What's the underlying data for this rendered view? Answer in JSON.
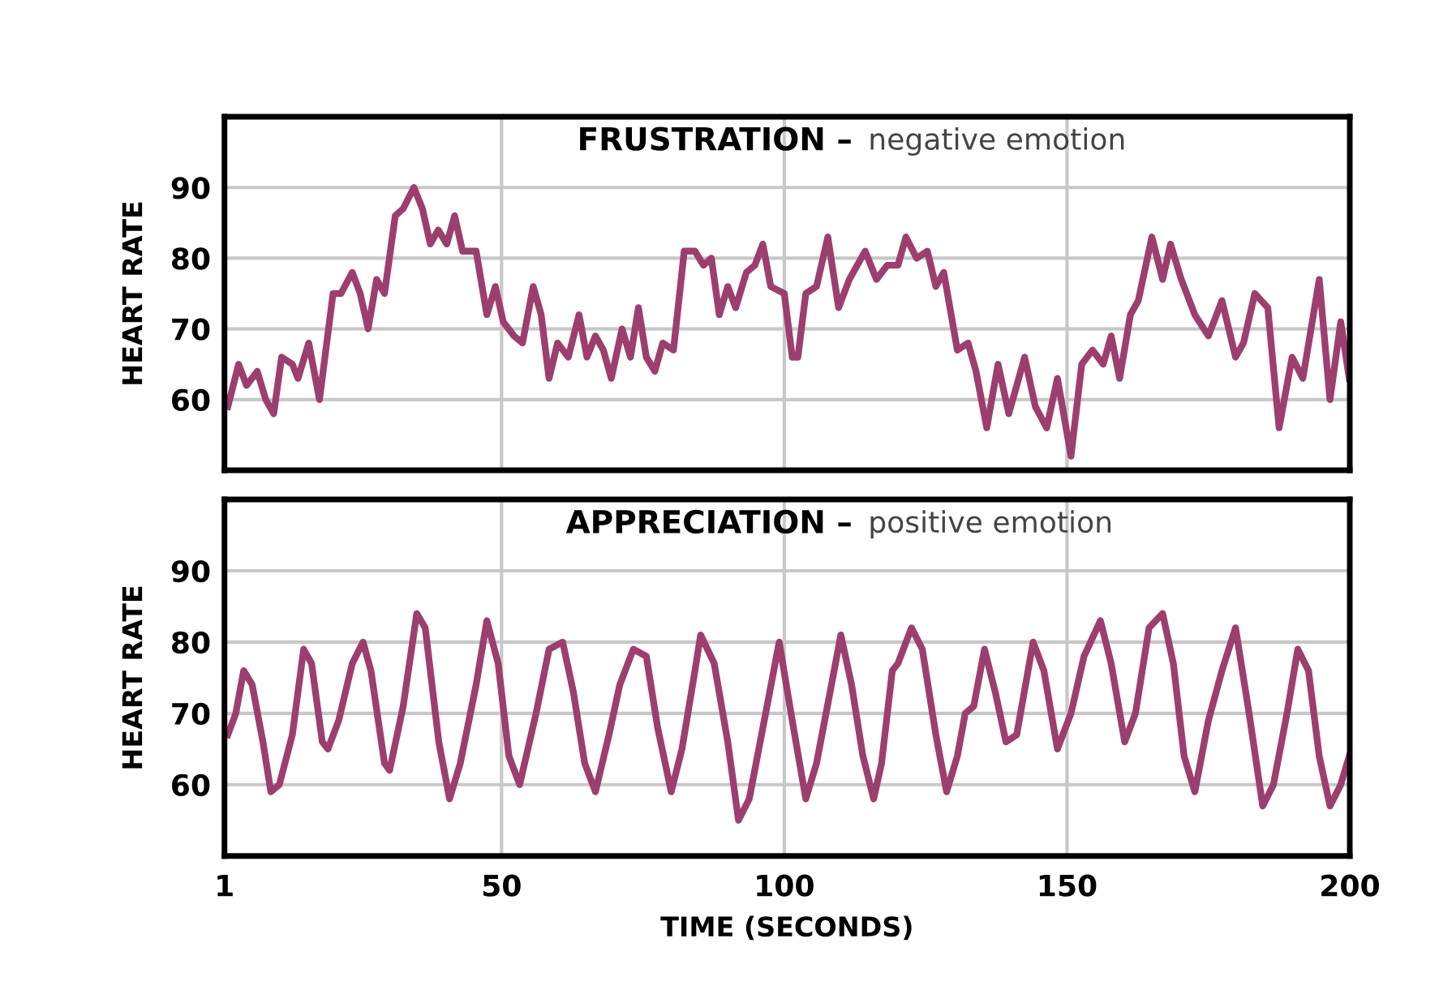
{
  "chart_data": [
    {
      "type": "line",
      "title": "FRUSTRATION –",
      "subtitle": "negative emotion",
      "ylabel": "HEART RATE",
      "xlim": [
        1,
        200
      ],
      "xticks": [
        1,
        50,
        100,
        150,
        200
      ],
      "ylim": [
        50,
        100
      ],
      "yticks": [
        60,
        70,
        80,
        90
      ],
      "grid": true,
      "tick_labels": "y",
      "marker": "none",
      "line_style": "solid",
      "series": [
        {
          "color": "#9c3f6e",
          "x": [
            1.6,
            3.5,
            4.9,
            6.8,
            8.3,
            9.7,
            11.1,
            13.0,
            14.0,
            15.9,
            17.8,
            20.2,
            21.6,
            23.6,
            25.0,
            26.4,
            27.9,
            29.3,
            31.2,
            32.6,
            34.5,
            36.0,
            37.4,
            38.8,
            40.3,
            41.7,
            43.1,
            45.5,
            47.4,
            48.9,
            50.3,
            52.2,
            53.7,
            55.6,
            57.0,
            58.4,
            59.9,
            61.8,
            63.7,
            65.1,
            66.6,
            68.0,
            69.4,
            71.3,
            72.8,
            74.2,
            75.6,
            77.1,
            78.5,
            80.4,
            82.3,
            84.2,
            85.7,
            87.1,
            88.5,
            90.0,
            91.4,
            93.3,
            94.8,
            96.2,
            97.6,
            100.0,
            101.4,
            102.4,
            103.8,
            105.7,
            107.7,
            109.6,
            111.5,
            114.3,
            116.3,
            118.2,
            120.1,
            121.5,
            123.4,
            125.3,
            126.8,
            128.2,
            130.6,
            132.5,
            133.9,
            135.8,
            137.8,
            139.7,
            142.5,
            144.4,
            146.4,
            148.3,
            150.7,
            152.6,
            154.5,
            156.4,
            157.8,
            159.3,
            161.2,
            162.6,
            165.0,
            166.9,
            168.3,
            170.2,
            172.6,
            175.0,
            177.4,
            179.8,
            181.2,
            183.2,
            185.5,
            187.5,
            189.8,
            191.7,
            194.6,
            196.5,
            198.4,
            199.9
          ],
          "values": [
            59,
            65,
            62,
            64,
            60,
            58,
            66,
            65,
            63,
            68,
            60,
            75,
            75,
            78,
            75,
            70,
            77,
            75,
            86,
            87,
            90,
            87,
            82,
            84,
            82,
            86,
            81,
            81,
            72,
            76,
            71,
            69,
            68,
            76,
            72,
            63,
            68,
            66,
            72,
            66,
            69,
            67,
            63,
            70,
            66,
            73,
            66,
            64,
            68,
            67,
            81,
            81,
            79,
            80,
            72,
            76,
            73,
            78,
            79,
            82,
            76,
            75,
            66,
            66,
            75,
            76,
            83,
            73,
            77,
            81,
            77,
            79,
            79,
            83,
            80,
            81,
            76,
            78,
            67,
            68,
            64,
            56,
            65,
            58,
            66,
            59,
            56,
            63,
            52,
            65,
            67,
            65,
            69,
            63,
            72,
            74,
            83,
            77,
            82,
            77,
            72,
            69,
            74,
            66,
            68,
            75,
            73,
            56,
            66,
            63,
            77,
            60,
            71,
            63
          ]
        }
      ]
    },
    {
      "type": "line",
      "title": "APPRECIATION –",
      "subtitle": "positive emotion",
      "ylabel": "HEART RATE",
      "xlabel": "TIME (SECONDS)",
      "xlim": [
        1,
        200
      ],
      "xticks": [
        1,
        50,
        100,
        150,
        200
      ],
      "ylim": [
        50,
        100
      ],
      "yticks": [
        60,
        70,
        80,
        90
      ],
      "grid": true,
      "marker": "none",
      "line_style": "solid",
      "series": [
        {
          "color": "#9c3f6e",
          "x": [
            1.6,
            3.0,
            4.4,
            5.9,
            7.8,
            9.2,
            10.7,
            13.0,
            15.0,
            16.4,
            18.3,
            19.3,
            21.2,
            23.6,
            25.5,
            26.9,
            29.3,
            30.2,
            32.6,
            35.0,
            36.5,
            38.9,
            40.8,
            42.7,
            45.5,
            47.4,
            49.4,
            51.3,
            53.2,
            56.1,
            58.4,
            60.8,
            62.7,
            64.7,
            66.6,
            69.0,
            70.9,
            73.3,
            75.6,
            77.6,
            80.0,
            81.9,
            84.2,
            85.2,
            87.6,
            90.0,
            91.9,
            93.8,
            96.7,
            99.1,
            101.4,
            103.8,
            105.7,
            108.1,
            110.0,
            111.9,
            113.9,
            115.8,
            117.2,
            119.1,
            120.1,
            122.5,
            124.4,
            126.8,
            128.7,
            130.6,
            132.0,
            133.5,
            135.4,
            137.3,
            139.2,
            141.1,
            144.0,
            145.9,
            148.3,
            150.7,
            153.0,
            155.9,
            157.8,
            160.2,
            162.1,
            164.5,
            166.9,
            168.8,
            170.7,
            172.6,
            175.0,
            177.4,
            179.8,
            182.2,
            184.6,
            186.5,
            188.9,
            190.8,
            192.7,
            194.6,
            196.5,
            198.4,
            199.9
          ],
          "values": [
            67,
            70,
            76,
            74,
            66,
            59,
            60,
            67,
            79,
            77,
            66,
            65,
            69,
            77,
            80,
            76,
            63,
            62,
            71,
            84,
            82,
            66,
            58,
            63,
            74,
            83,
            77,
            64,
            60,
            70,
            79,
            80,
            73,
            63,
            59,
            67,
            74,
            79,
            78,
            68,
            59,
            65,
            76,
            81,
            77,
            66,
            55,
            58,
            70,
            80,
            69,
            58,
            63,
            73,
            81,
            74,
            64,
            58,
            63,
            76,
            77,
            82,
            79,
            67,
            59,
            64,
            70,
            71,
            79,
            73,
            66,
            67,
            80,
            76,
            65,
            70,
            78,
            83,
            77,
            66,
            70,
            82,
            84,
            77,
            64,
            59,
            69,
            76,
            82,
            70,
            57,
            60,
            70,
            79,
            76,
            64,
            57,
            60,
            64
          ]
        }
      ]
    }
  ]
}
